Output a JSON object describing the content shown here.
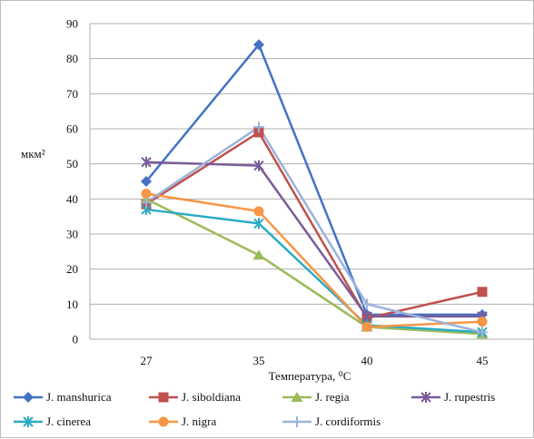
{
  "chart_data": {
    "type": "line",
    "xlabel": "Температура, ⁰C",
    "ylabel": "мкм²",
    "categories": [
      "27",
      "35",
      "40",
      "45"
    ],
    "ylim": [
      0,
      90
    ],
    "yticks": [
      0,
      10,
      20,
      30,
      40,
      50,
      60,
      70,
      80,
      90
    ],
    "grid": "horizontal",
    "legend_position": "bottom",
    "series": [
      {
        "name": "J. manshurica",
        "color": "#4472c4",
        "marker": "diamond",
        "values": [
          45,
          84,
          7,
          7
        ]
      },
      {
        "name": "J. siboldiana",
        "color": "#c0504d",
        "marker": "square",
        "values": [
          38.5,
          59,
          6,
          13.5
        ]
      },
      {
        "name": "J. regia",
        "color": "#9bbb59",
        "marker": "triangle",
        "values": [
          40,
          24,
          3.5,
          1.5
        ]
      },
      {
        "name": "J. rupestris",
        "color": "#7a5c99",
        "marker": "star",
        "values": [
          50.5,
          49.5,
          6.5,
          6.5
        ]
      },
      {
        "name": "J. cinerea",
        "color": "#2cabc4",
        "marker": "star",
        "values": [
          37,
          33,
          4,
          2
        ]
      },
      {
        "name": "J. nigra",
        "color": "#f79646",
        "marker": "circle",
        "values": [
          41.5,
          36.5,
          3.5,
          5
        ]
      },
      {
        "name": "J. cordiformis",
        "color": "#9bb3dc",
        "marker": "plus",
        "values": [
          39,
          60.5,
          10,
          2
        ]
      }
    ]
  }
}
